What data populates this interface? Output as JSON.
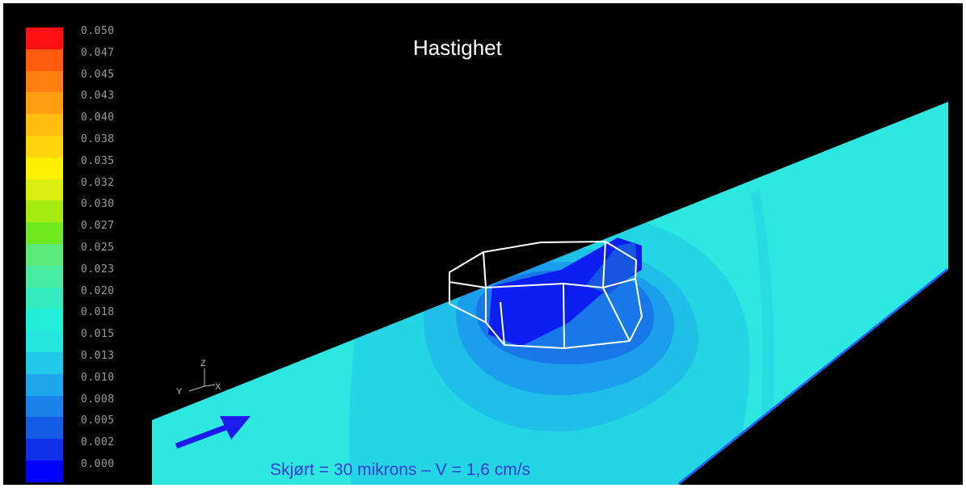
{
  "title": "Hastighet",
  "caption": "Skjørt = 30 mikrons – V = 1,6 cm/s",
  "legend": {
    "labels": [
      "0.050",
      "0.047",
      "0.045",
      "0.043",
      "0.040",
      "0.038",
      "0.035",
      "0.032",
      "0.030",
      "0.027",
      "0.025",
      "0.023",
      "0.020",
      "0.018",
      "0.015",
      "0.013",
      "0.010",
      "0.008",
      "0.005",
      "0.002",
      "0.000"
    ],
    "colors": [
      "#ff1010",
      "#ff5a10",
      "#ff8010",
      "#ff9f10",
      "#ffbe10",
      "#ffd510",
      "#fff000",
      "#d8ee10",
      "#a6ea10",
      "#6fe820",
      "#5ae878",
      "#46eaa0",
      "#32ecbe",
      "#20f0d8",
      "#26e6e0",
      "#20c8ea",
      "#1ea6ee",
      "#1a82ea",
      "#155ce4",
      "#0f30e8",
      "#0000ff"
    ]
  },
  "axes": {
    "x": "X",
    "y": "Y",
    "z": "Z"
  },
  "colors": {
    "background": "#000000",
    "plane_base": "#2de8e0",
    "arrow": "#1b1bf0",
    "caption": "#3b3bd8",
    "wireframe": "#ffffff"
  }
}
